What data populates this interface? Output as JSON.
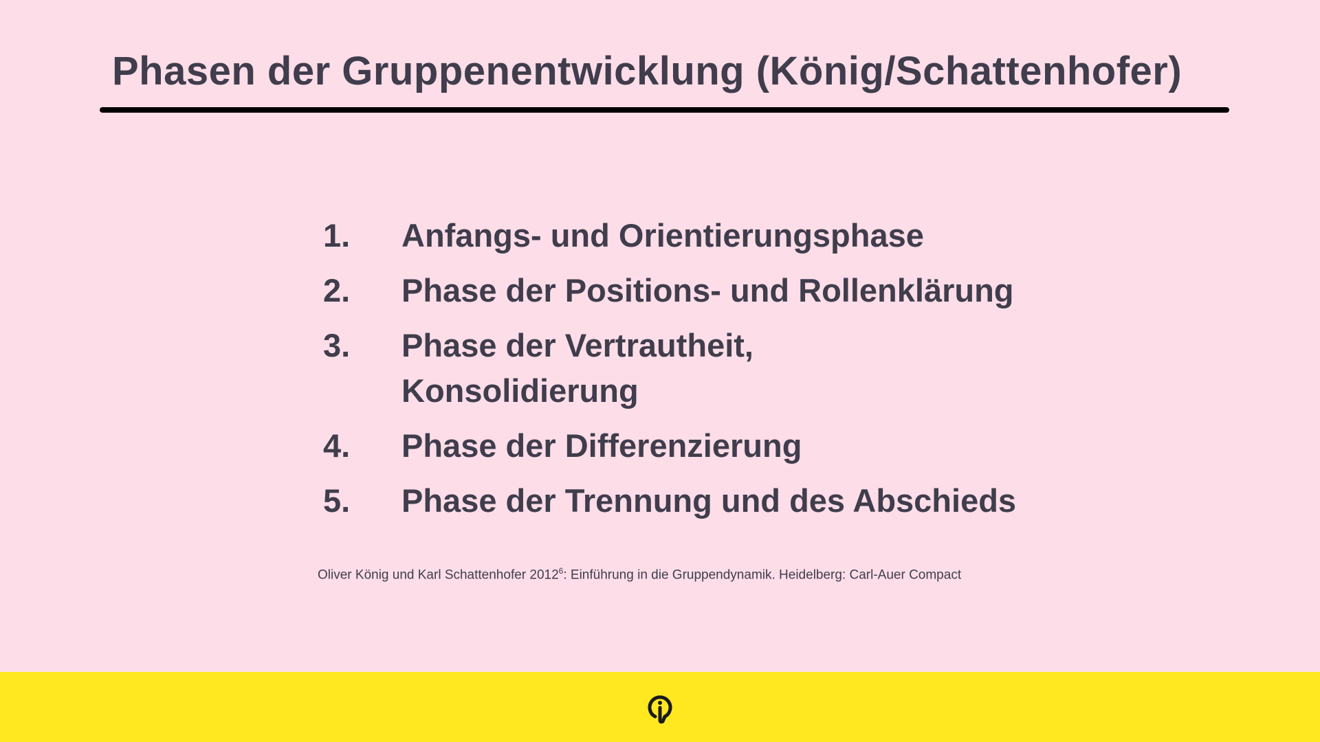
{
  "slide": {
    "title": "Phasen der Gruppenentwicklung (König/Schattenhofer)",
    "items": [
      {
        "number": "1.",
        "text": "Anfangs- und Orientierungsphase"
      },
      {
        "number": "2.",
        "text": "Phase der Positions- und Rollenklärung"
      },
      {
        "number": "3.",
        "text": "Phase der Vertrautheit, Konsolidierung"
      },
      {
        "number": "4.",
        "text": "Phase der Differenzierung"
      },
      {
        "number": "5.",
        "text": "Phase der Trennung und des Abschieds"
      }
    ],
    "citation": {
      "before": "Oliver König und Karl Schattenhofer 2012",
      "superscript": "6",
      "after": ": Einführung in die Gruppendynamik. Heidelberg: Carl-Auer Compact"
    }
  },
  "footer": {
    "logo_icon": "lightbulb-logo-icon"
  },
  "colors": {
    "background": "#fcdde8",
    "text": "#403d4c",
    "footer": "#ffe81f"
  }
}
